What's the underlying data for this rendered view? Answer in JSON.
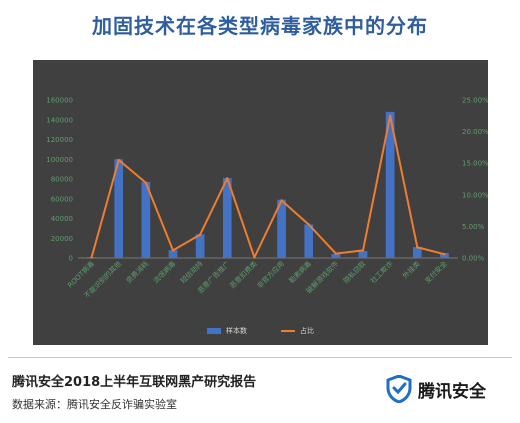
{
  "title": "加固技术在各类型病毒家族中的分布",
  "chart_data": {
    "type": "bar",
    "categories": [
      "ROOT病毒",
      "不能识别的其他",
      "资费消耗",
      "流氓病毒",
      "短信劫持",
      "恶意广告推广",
      "恶意扣费类",
      "非官方应用",
      "勒索病毒",
      "破解游戏软件",
      "隐私窃取",
      "社工欺诈",
      "外挂类",
      "支付安全"
    ],
    "series": [
      {
        "name": "样本数",
        "type": "bar",
        "axis": "left",
        "color": "#4472c4",
        "values": [
          1000,
          100000,
          77000,
          8000,
          24000,
          81000,
          500,
          59000,
          34000,
          4000,
          7000,
          148000,
          11000,
          5000
        ]
      },
      {
        "name": "占比",
        "type": "line",
        "axis": "right",
        "color": "#ed7d31",
        "values": [
          0.0008,
          0.155,
          0.119,
          0.012,
          0.037,
          0.126,
          0.001,
          0.091,
          0.053,
          0.007,
          0.012,
          0.225,
          0.017,
          0.006
        ]
      }
    ],
    "y_left": {
      "min": 0,
      "max": 160000,
      "ticks": [
        "0",
        "20000",
        "40000",
        "60000",
        "80000",
        "100000",
        "120000",
        "140000",
        "160000"
      ]
    },
    "y_right": {
      "min": 0,
      "max": 0.25,
      "ticks": [
        "0.00%",
        "5.00%",
        "10.00%",
        "15.00%",
        "20.00%",
        "25.00%"
      ]
    },
    "grid": false,
    "legend": "bottom-center"
  },
  "footer": {
    "report": "腾讯安全2018上半年互联网黑产研究报告",
    "source": "数据来源：腾讯安全反诈骗实验室",
    "brand": "腾讯安全"
  },
  "colors": {
    "title": "#2f5e9e",
    "panel": "#404040",
    "bar": "#4472c4",
    "line": "#ed7d31",
    "axis_text": "#5e9e6e"
  }
}
